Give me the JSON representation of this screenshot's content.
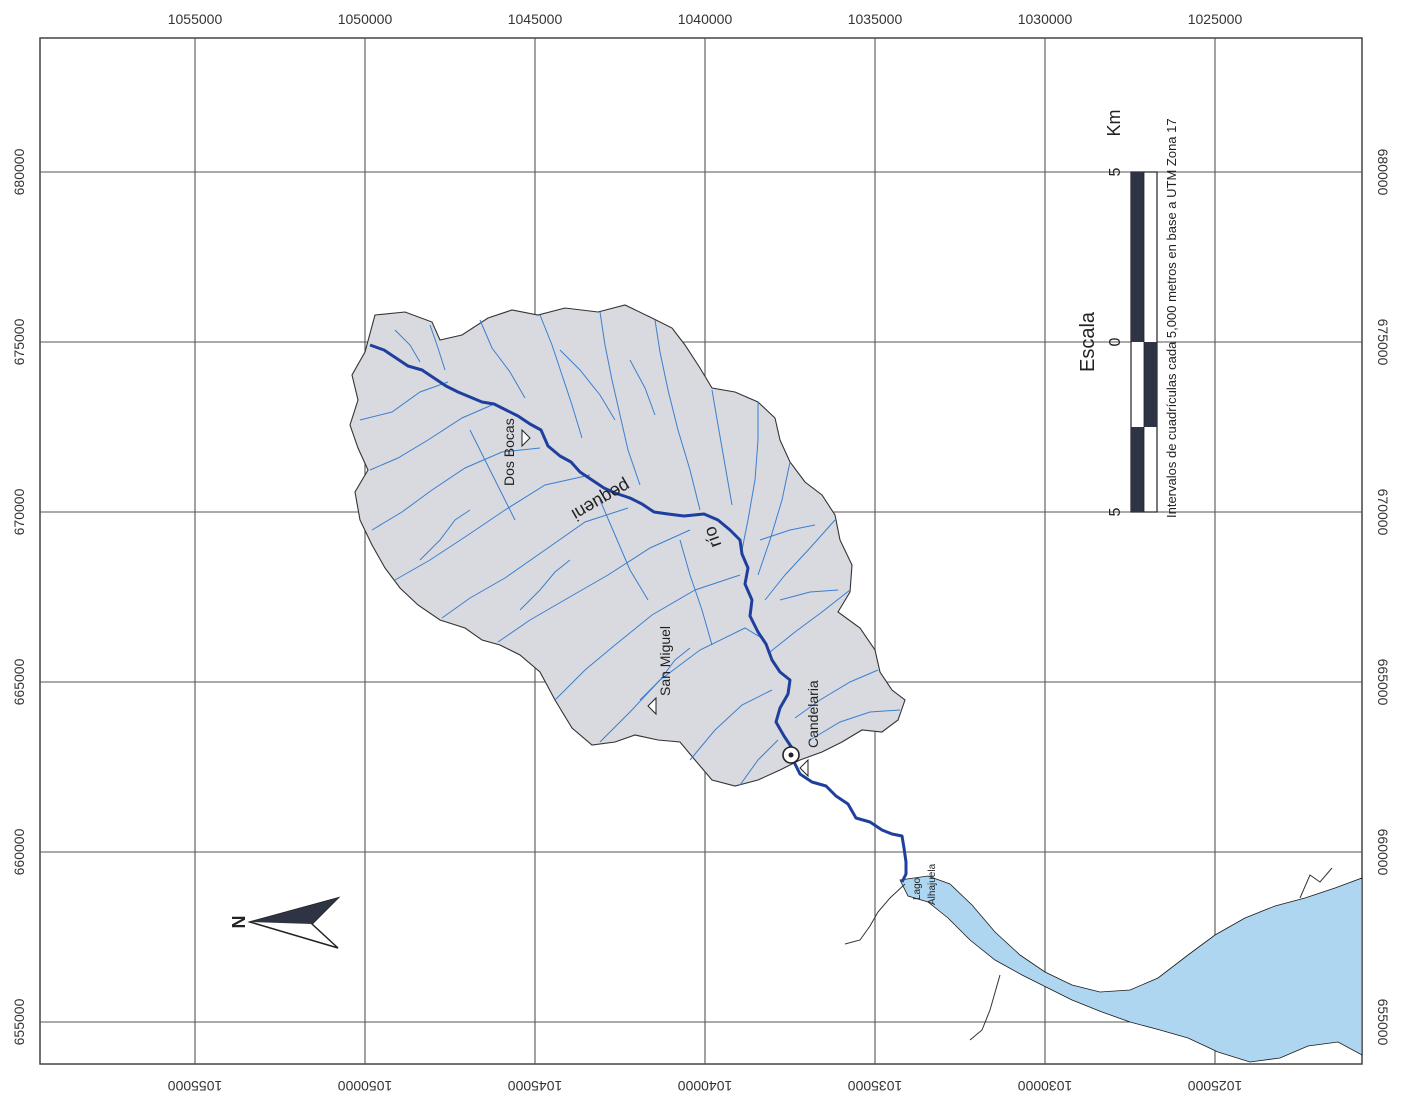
{
  "map": {
    "easting_ticks_top": [
      "1055000",
      "1050000",
      "1045000",
      "1040000",
      "1035000",
      "1030000",
      "1025000"
    ],
    "easting_ticks_bottom": [
      "1055000",
      "1050000",
      "1045000",
      "1040000",
      "1035000",
      "1030000",
      "1025000"
    ],
    "northing_ticks_left": [
      "680000",
      "675000",
      "670000",
      "665000",
      "660000",
      "655000"
    ],
    "northing_ticks_right": [
      "680000",
      "675000",
      "670000",
      "665000",
      "660000",
      "655000"
    ],
    "places": {
      "dos_bocas": "Dos Bocas",
      "san_miguel": "San Miguel",
      "candelaria": "Candelaria"
    },
    "river_label_1": "río",
    "river_label_2": "pequeni",
    "lake_label_1": "Lago",
    "lake_label_2": "Alhajuela",
    "north_label": "N",
    "scale": {
      "title": "Escala",
      "left_value": "5",
      "mid_value": "0",
      "right_value": "5",
      "unit": "Km",
      "note": "Intervalos de cuadrículas cada 5,000 metros en base a UTM Zona 17"
    },
    "colors": {
      "watershed": "#d9dadf",
      "river": "#1f3f9e",
      "tributary": "#3b7fd0",
      "lake": "#aed6f0",
      "grid": "#555555"
    }
  }
}
